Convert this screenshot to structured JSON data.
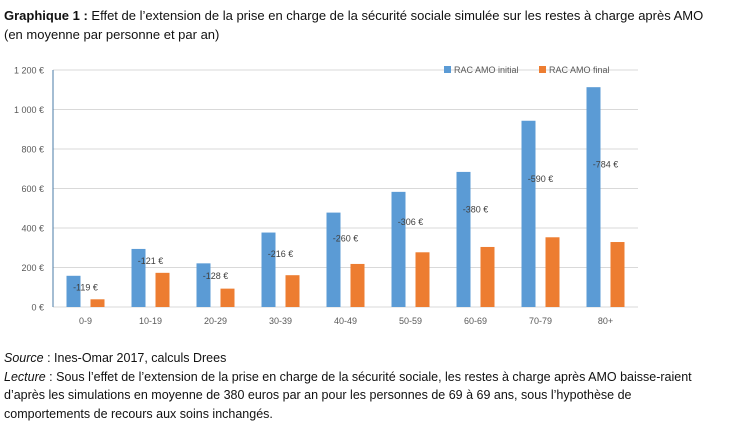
{
  "title": {
    "label": "Graphique 1 :",
    "text": "Effet de l’extension de la prise en charge de la sécurité sociale simulée sur les restes à charge après AMO (en moyenne par personne et par an)"
  },
  "chart_data": {
    "type": "bar",
    "categories": [
      "0-9",
      "10-19",
      "20-29",
      "30-39",
      "40-49",
      "50-59",
      "60-69",
      "70-79",
      "80+"
    ],
    "series": [
      {
        "name": "RAC AMO initial",
        "color": "#5B9BD5",
        "values": [
          158,
          294,
          221,
          377,
          478,
          583,
          684,
          943,
          1113
        ]
      },
      {
        "name": "RAC AMO final",
        "color": "#ED7D31",
        "values": [
          39,
          173,
          93,
          161,
          218,
          277,
          304,
          353,
          329
        ]
      }
    ],
    "data_labels": [
      "-119 €",
      "-121 €",
      "-128 €",
      "-216 €",
      "-260 €",
      "-306 €",
      "-380 €",
      "-590 €",
      "-784 €"
    ],
    "yticks": [
      0,
      200,
      400,
      600,
      800,
      1000,
      1200
    ],
    "ytick_labels": [
      "0 €",
      "200 €",
      "400 €",
      "600 €",
      "800 €",
      "1 000 €",
      "1 200 €"
    ],
    "ylim": [
      0,
      1200
    ],
    "grid": true,
    "legend_position": "top-right"
  },
  "notes": {
    "source_label": "Source",
    "source_text": " : Ines-Omar 2017, calculs Drees",
    "lecture_label": "Lecture",
    "lecture_text": " : Sous l’effet de l’extension de la prise en charge de la sécurité sociale, les restes à charge après AMO baisse-raient d’après les simulations en moyenne de 380 euros par an pour les personnes de 69 à 69 ans, sous l’hypothèse de comportements de recours aux soins inchangés."
  }
}
